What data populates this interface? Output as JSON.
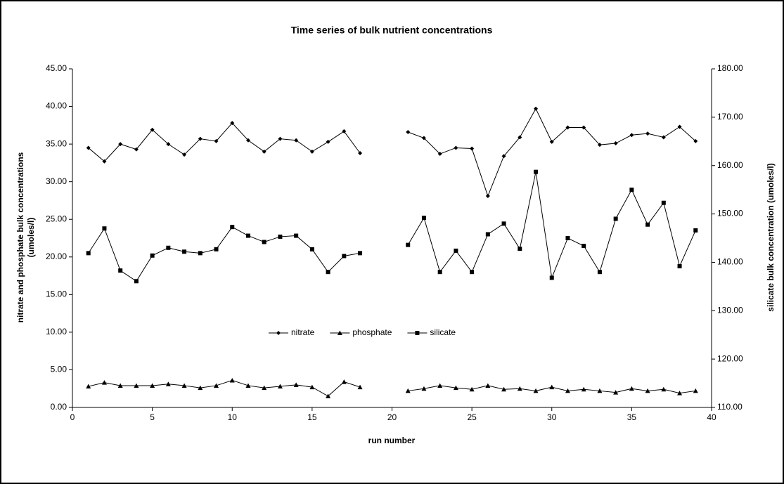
{
  "chart_data": {
    "type": "line",
    "title": "Time series of bulk nutrient concentrations",
    "xlabel": "run number",
    "ylabel": [
      "nitrate and phosphate bulk concentrations",
      "(umoles/l)"
    ],
    "y2label": "silicate bulk concentration (umoles/l)",
    "x": [
      1,
      2,
      3,
      4,
      5,
      6,
      7,
      8,
      9,
      10,
      11,
      12,
      13,
      14,
      15,
      16,
      17,
      18,
      19,
      20,
      21,
      22,
      23,
      24,
      25,
      26,
      27,
      28,
      29,
      30,
      31,
      32,
      33,
      34,
      35,
      36,
      37,
      38,
      39
    ],
    "series": [
      {
        "name": "nitrate",
        "color": "#000000",
        "marker": "diamond",
        "values": [
          34.5,
          32.7,
          35.0,
          34.3,
          36.9,
          35.0,
          33.6,
          35.7,
          35.4,
          37.8,
          35.5,
          34.0,
          35.7,
          35.5,
          34.0,
          35.3,
          36.7,
          33.8,
          null,
          null,
          36.6,
          35.8,
          33.7,
          34.5,
          34.4,
          28.1,
          33.4,
          35.9,
          39.7,
          35.3,
          37.2,
          37.2,
          34.9,
          35.1,
          36.2,
          36.4,
          35.9,
          37.3,
          35.4
        ]
      },
      {
        "name": "phosphate",
        "color": "#000000",
        "marker": "triangle",
        "values": [
          2.8,
          3.3,
          2.9,
          2.9,
          2.9,
          3.1,
          2.9,
          2.6,
          2.9,
          3.6,
          2.9,
          2.6,
          2.8,
          3.0,
          2.7,
          1.5,
          3.4,
          2.7,
          null,
          null,
          2.2,
          2.5,
          2.9,
          2.6,
          2.4,
          2.9,
          2.4,
          2.5,
          2.2,
          2.7,
          2.2,
          2.4,
          2.2,
          2.0,
          2.5,
          2.2,
          2.4,
          1.9,
          2.2
        ]
      },
      {
        "name": "silicate",
        "color": "#000000",
        "marker": "square",
        "axis": "y2",
        "values": [
          141.9,
          147.0,
          138.3,
          136.1,
          141.4,
          143.0,
          142.2,
          141.9,
          142.7,
          147.3,
          145.5,
          144.2,
          145.3,
          145.5,
          142.7,
          138.0,
          141.3,
          141.9,
          null,
          null,
          143.6,
          149.2,
          138.0,
          142.4,
          138.0,
          145.8,
          148.0,
          142.8,
          158.7,
          136.8,
          145.0,
          143.4,
          138.0,
          149.0,
          155.0,
          147.8,
          152.3,
          139.2,
          146.6
        ]
      }
    ],
    "xlim": [
      0,
      40
    ],
    "xticks": [
      0,
      5,
      10,
      15,
      20,
      25,
      30,
      35,
      40
    ],
    "ylim": [
      0,
      45
    ],
    "yticks": [
      {
        "value": 0,
        "label": "0.00"
      },
      {
        "value": 5,
        "label": "5.00"
      },
      {
        "value": 10,
        "label": "10.00"
      },
      {
        "value": 15,
        "label": "15.00"
      },
      {
        "value": 20,
        "label": "20.00"
      },
      {
        "value": 25,
        "label": "25.00"
      },
      {
        "value": 30,
        "label": "30.00"
      },
      {
        "value": 35,
        "label": "35.00"
      },
      {
        "value": 40,
        "label": "40.00"
      },
      {
        "value": 45,
        "label": "45.00"
      }
    ],
    "y2lim": [
      110,
      180
    ],
    "y2ticks": [
      {
        "value": 110,
        "label": "110.00"
      },
      {
        "value": 120,
        "label": "120.00"
      },
      {
        "value": 130,
        "label": "130.00"
      },
      {
        "value": 140,
        "label": "140.00"
      },
      {
        "value": 150,
        "label": "150.00"
      },
      {
        "value": 160,
        "label": "160.00"
      },
      {
        "value": 170,
        "label": "170.00"
      },
      {
        "value": 180,
        "label": "180.00"
      }
    ],
    "grid": false,
    "legend": "center"
  }
}
